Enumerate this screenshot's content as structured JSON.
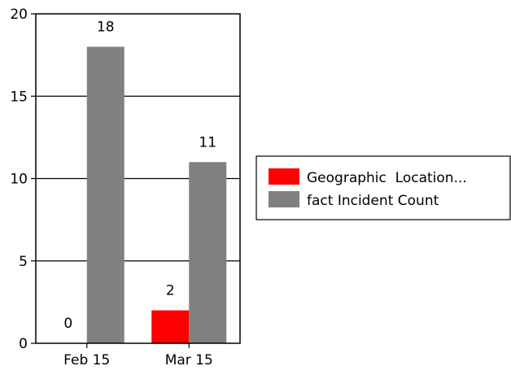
{
  "chart_data": {
    "type": "bar",
    "categories": [
      "Feb 15",
      "Mar 15"
    ],
    "series": [
      {
        "name": "Geographic  Location...",
        "values": [
          0,
          2
        ],
        "color": "#ff0000"
      },
      {
        "name": "fact Incident Count",
        "values": [
          18,
          11
        ],
        "color": "#808080"
      }
    ],
    "ylim": [
      0,
      20
    ],
    "yticks": [
      0,
      5,
      10,
      15,
      20
    ],
    "grid": true,
    "legend_position": "right",
    "data_labels": true
  }
}
